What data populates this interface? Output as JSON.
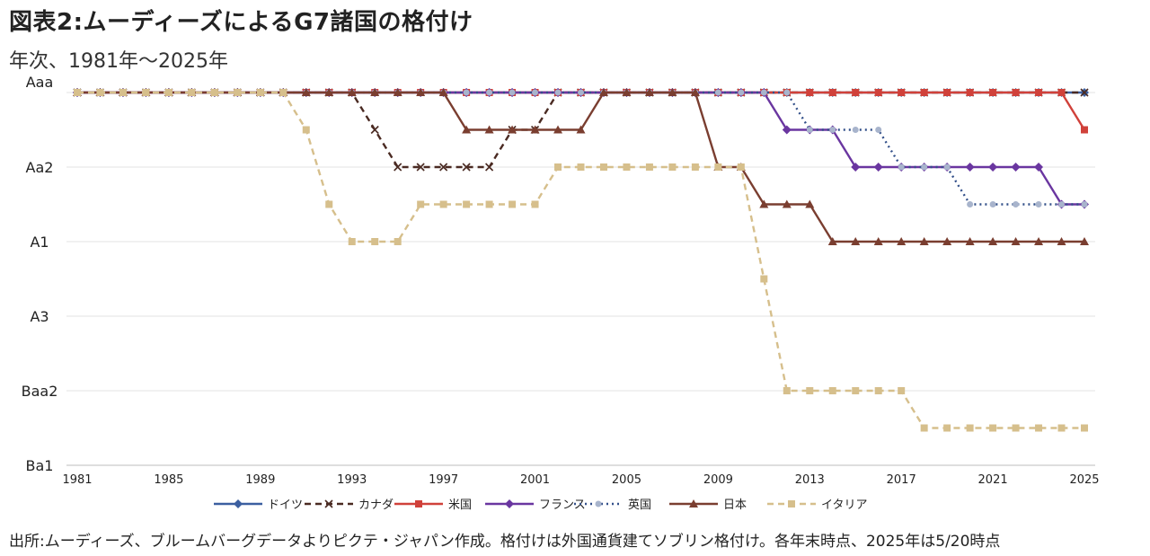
{
  "title": "図表2:ムーディーズによるG7諸国の格付け",
  "subtitle": "年次、1981年〜2025年",
  "source": "出所:ムーディーズ、ブルームバーグデータよりピクテ・ジャパン作成。格付けは外国通貨建てソブリン格付け。各年末時点、2025年は5/20時点",
  "chart_data": {
    "type": "line",
    "title": "",
    "xlabel": "",
    "ylabel": "",
    "x_ticks": [
      1981,
      1985,
      1989,
      1993,
      1997,
      2001,
      2005,
      2009,
      2013,
      2017,
      2021,
      2025
    ],
    "x_range": [
      1981,
      2025
    ],
    "y_ticks": [
      "Aaa",
      "Aa2",
      "A1",
      "A3",
      "Baa2",
      "Ba1"
    ],
    "y_tick_notches": [
      1,
      3,
      5,
      7,
      9,
      11
    ],
    "y_notch_scale": [
      "Aaa",
      "Aa1",
      "Aa2",
      "Aa3",
      "A1",
      "A2",
      "A3",
      "Baa1",
      "Baa2",
      "Baa3",
      "Ba1"
    ],
    "grid": true,
    "legend_position": "bottom",
    "x": [
      1981,
      1982,
      1983,
      1984,
      1985,
      1986,
      1987,
      1988,
      1989,
      1990,
      1991,
      1992,
      1993,
      1994,
      1995,
      1996,
      1997,
      1998,
      1999,
      2000,
      2001,
      2002,
      2003,
      2004,
      2005,
      2006,
      2007,
      2008,
      2009,
      2010,
      2011,
      2012,
      2013,
      2014,
      2015,
      2016,
      2017,
      2018,
      2019,
      2020,
      2021,
      2022,
      2023,
      2024,
      2025
    ],
    "series": [
      {
        "name": "ドイツ",
        "color": "#3b5fa0",
        "dash": "solid",
        "marker": "diamond",
        "values": [
          "Aaa",
          "Aaa",
          "Aaa",
          "Aaa",
          "Aaa",
          "Aaa",
          "Aaa",
          "Aaa",
          "Aaa",
          "Aaa",
          "Aaa",
          "Aaa",
          "Aaa",
          "Aaa",
          "Aaa",
          "Aaa",
          "Aaa",
          "Aaa",
          "Aaa",
          "Aaa",
          "Aaa",
          "Aaa",
          "Aaa",
          "Aaa",
          "Aaa",
          "Aaa",
          "Aaa",
          "Aaa",
          "Aaa",
          "Aaa",
          "Aaa",
          "Aaa",
          "Aaa",
          "Aaa",
          "Aaa",
          "Aaa",
          "Aaa",
          "Aaa",
          "Aaa",
          "Aaa",
          "Aaa",
          "Aaa",
          "Aaa",
          "Aaa",
          "Aaa"
        ]
      },
      {
        "name": "カナダ",
        "color": "#4a2a22",
        "dash": "dash",
        "marker": "x",
        "values": [
          "Aaa",
          "Aaa",
          "Aaa",
          "Aaa",
          "Aaa",
          "Aaa",
          "Aaa",
          "Aaa",
          "Aaa",
          "Aaa",
          "Aaa",
          "Aaa",
          "Aaa",
          "Aa1",
          "Aa2",
          "Aa2",
          "Aa2",
          "Aa2",
          "Aa2",
          "Aa1",
          "Aa1",
          "Aaa",
          "Aaa",
          "Aaa",
          "Aaa",
          "Aaa",
          "Aaa",
          "Aaa",
          "Aaa",
          "Aaa",
          "Aaa",
          "Aaa",
          "Aaa",
          "Aaa",
          "Aaa",
          "Aaa",
          "Aaa",
          "Aaa",
          "Aaa",
          "Aaa",
          "Aaa",
          "Aaa",
          "Aaa",
          "Aaa",
          "Aaa"
        ]
      },
      {
        "name": "米国",
        "color": "#d0413a",
        "dash": "solid",
        "marker": "square",
        "values": [
          "Aaa",
          "Aaa",
          "Aaa",
          "Aaa",
          "Aaa",
          "Aaa",
          "Aaa",
          "Aaa",
          "Aaa",
          "Aaa",
          "Aaa",
          "Aaa",
          "Aaa",
          "Aaa",
          "Aaa",
          "Aaa",
          "Aaa",
          "Aaa",
          "Aaa",
          "Aaa",
          "Aaa",
          "Aaa",
          "Aaa",
          "Aaa",
          "Aaa",
          "Aaa",
          "Aaa",
          "Aaa",
          "Aaa",
          "Aaa",
          "Aaa",
          "Aaa",
          "Aaa",
          "Aaa",
          "Aaa",
          "Aaa",
          "Aaa",
          "Aaa",
          "Aaa",
          "Aaa",
          "Aaa",
          "Aaa",
          "Aaa",
          "Aaa",
          "Aa1"
        ]
      },
      {
        "name": "フランス",
        "color": "#6a36a0",
        "dash": "solid",
        "marker": "diamond",
        "values": [
          "Aaa",
          "Aaa",
          "Aaa",
          "Aaa",
          "Aaa",
          "Aaa",
          "Aaa",
          "Aaa",
          "Aaa",
          "Aaa",
          "Aaa",
          "Aaa",
          "Aaa",
          "Aaa",
          "Aaa",
          "Aaa",
          "Aaa",
          "Aaa",
          "Aaa",
          "Aaa",
          "Aaa",
          "Aaa",
          "Aaa",
          "Aaa",
          "Aaa",
          "Aaa",
          "Aaa",
          "Aaa",
          "Aaa",
          "Aaa",
          "Aaa",
          "Aa1",
          "Aa1",
          "Aa1",
          "Aa2",
          "Aa2",
          "Aa2",
          "Aa2",
          "Aa2",
          "Aa2",
          "Aa2",
          "Aa2",
          "Aa2",
          "Aa3",
          "Aa3"
        ]
      },
      {
        "name": "英国",
        "color": "#33508a",
        "dash": "dot",
        "marker": "circle",
        "values": [
          "Aaa",
          "Aaa",
          "Aaa",
          "Aaa",
          "Aaa",
          "Aaa",
          "Aaa",
          "Aaa",
          "Aaa",
          "Aaa",
          "Aaa",
          "Aaa",
          "Aaa",
          "Aaa",
          "Aaa",
          "Aaa",
          "Aaa",
          "Aaa",
          "Aaa",
          "Aaa",
          "Aaa",
          "Aaa",
          "Aaa",
          "Aaa",
          "Aaa",
          "Aaa",
          "Aaa",
          "Aaa",
          "Aaa",
          "Aaa",
          "Aaa",
          "Aaa",
          "Aa1",
          "Aa1",
          "Aa1",
          "Aa1",
          "Aa2",
          "Aa2",
          "Aa2",
          "Aa3",
          "Aa3",
          "Aa3",
          "Aa3",
          "Aa3",
          "Aa3"
        ]
      },
      {
        "name": "日本",
        "color": "#7a3e30",
        "dash": "solid",
        "marker": "triangle",
        "values": [
          "Aaa",
          "Aaa",
          "Aaa",
          "Aaa",
          "Aaa",
          "Aaa",
          "Aaa",
          "Aaa",
          "Aaa",
          "Aaa",
          "Aaa",
          "Aaa",
          "Aaa",
          "Aaa",
          "Aaa",
          "Aaa",
          "Aaa",
          "Aa1",
          "Aa1",
          "Aa1",
          "Aa1",
          "Aa1",
          "Aa1",
          "Aaa",
          "Aaa",
          "Aaa",
          "Aaa",
          "Aaa",
          "Aa2",
          "Aa2",
          "Aa3",
          "Aa3",
          "Aa3",
          "A1",
          "A1",
          "A1",
          "A1",
          "A1",
          "A1",
          "A1",
          "A1",
          "A1",
          "A1",
          "A1",
          "A1"
        ]
      },
      {
        "name": "イタリア",
        "color": "#d6bf8c",
        "dash": "dash",
        "marker": "square",
        "values": [
          "Aaa",
          "Aaa",
          "Aaa",
          "Aaa",
          "Aaa",
          "Aaa",
          "Aaa",
          "Aaa",
          "Aaa",
          "Aaa",
          "Aa1",
          "Aa3",
          "A1",
          "A1",
          "A1",
          "Aa3",
          "Aa3",
          "Aa3",
          "Aa3",
          "Aa3",
          "Aa3",
          "Aa2",
          "Aa2",
          "Aa2",
          "Aa2",
          "Aa2",
          "Aa2",
          "Aa2",
          "Aa2",
          "Aa2",
          "A2",
          "Baa2",
          "Baa2",
          "Baa2",
          "Baa2",
          "Baa2",
          "Baa2",
          "Baa3",
          "Baa3",
          "Baa3",
          "Baa3",
          "Baa3",
          "Baa3",
          "Baa3",
          "Baa3"
        ]
      }
    ]
  }
}
